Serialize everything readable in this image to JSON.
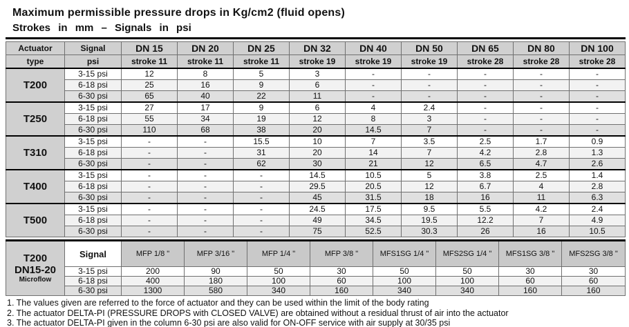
{
  "title": "Maximum permissible pressure drops in Kg/cm2 (fluid opens)",
  "subtitle": "Strokes in mm – Signals in psi",
  "colors": {
    "header_bg": "#d0d0d0",
    "row_light": "#f2f2f2",
    "row_shaded": "#e0e0e0"
  },
  "main_table": {
    "corner": {
      "actuator_line1": "Actuator",
      "actuator_line2": "type",
      "signal_line1": "Signal",
      "signal_line2": "psi"
    },
    "dn_columns": [
      {
        "dn": "DN 15",
        "stroke": "stroke 11"
      },
      {
        "dn": "DN 20",
        "stroke": "stroke 11"
      },
      {
        "dn": "DN 25",
        "stroke": "stroke 11"
      },
      {
        "dn": "DN 32",
        "stroke": "stroke 19"
      },
      {
        "dn": "DN 40",
        "stroke": "stroke 19"
      },
      {
        "dn": "DN 50",
        "stroke": "stroke 19"
      },
      {
        "dn": "DN 65",
        "stroke": "stroke 28"
      },
      {
        "dn": "DN 80",
        "stroke": "stroke 28"
      },
      {
        "dn": "DN 100",
        "stroke": "stroke 28"
      }
    ],
    "groups": [
      {
        "actuator": "T200",
        "rows": [
          {
            "signal": "3-15 psi",
            "values": [
              "12",
              "8",
              "5",
              "3",
              "-",
              "-",
              "-",
              "-",
              "-"
            ]
          },
          {
            "signal": "6-18 psi",
            "values": [
              "25",
              "16",
              "9",
              "6",
              "-",
              "-",
              "-",
              "-",
              "-"
            ]
          },
          {
            "signal": "6-30 psi",
            "values": [
              "65",
              "40",
              "22",
              "11",
              "-",
              "-",
              "-",
              "-",
              "-"
            ]
          }
        ]
      },
      {
        "actuator": "T250",
        "rows": [
          {
            "signal": "3-15 psi",
            "values": [
              "27",
              "17",
              "9",
              "6",
              "4",
              "2.4",
              "-",
              "-",
              "-"
            ]
          },
          {
            "signal": "6-18 psi",
            "values": [
              "55",
              "34",
              "19",
              "12",
              "8",
              "3",
              "-",
              "-",
              "-"
            ]
          },
          {
            "signal": "6-30 psi",
            "values": [
              "110",
              "68",
              "38",
              "20",
              "14.5",
              "7",
              "-",
              "-",
              "-"
            ]
          }
        ]
      },
      {
        "actuator": "T310",
        "rows": [
          {
            "signal": "3-15 psi",
            "values": [
              "-",
              "-",
              "15.5",
              "10",
              "7",
              "3.5",
              "2.5",
              "1.7",
              "0.9"
            ]
          },
          {
            "signal": "6-18 psi",
            "values": [
              "-",
              "-",
              "31",
              "20",
              "14",
              "7",
              "4.2",
              "2.8",
              "1.3"
            ]
          },
          {
            "signal": "6-30 psi",
            "values": [
              "-",
              "-",
              "62",
              "30",
              "21",
              "12",
              "6.5",
              "4.7",
              "2.6"
            ]
          }
        ]
      },
      {
        "actuator": "T400",
        "rows": [
          {
            "signal": "3-15 psi",
            "values": [
              "-",
              "-",
              "-",
              "14.5",
              "10.5",
              "5",
              "3.8",
              "2.5",
              "1.4"
            ]
          },
          {
            "signal": "6-18 psi",
            "values": [
              "-",
              "-",
              "-",
              "29.5",
              "20.5",
              "12",
              "6.7",
              "4",
              "2.8"
            ]
          },
          {
            "signal": "6-30 psi",
            "values": [
              "-",
              "-",
              "-",
              "45",
              "31.5",
              "18",
              "16",
              "11",
              "6.3"
            ]
          }
        ]
      },
      {
        "actuator": "T500",
        "rows": [
          {
            "signal": "3-15 psi",
            "values": [
              "-",
              "-",
              "-",
              "24.5",
              "17.5",
              "9.5",
              "5.5",
              "4.2",
              "2.4"
            ]
          },
          {
            "signal": "6-18 psi",
            "values": [
              "-",
              "-",
              "-",
              "49",
              "34.5",
              "19.5",
              "12.2",
              "7",
              "4.9"
            ]
          },
          {
            "signal": "6-30 psi",
            "values": [
              "-",
              "-",
              "-",
              "75",
              "52.5",
              "30.3",
              "26",
              "16",
              "10.5"
            ]
          }
        ]
      }
    ]
  },
  "microflow_table": {
    "label_lines": [
      "T200",
      "DN15-20",
      "Microflow"
    ],
    "signal_header": "Signal",
    "columns": [
      "MFP 1/8 \"",
      "MFP 3/16 \"",
      "MFP 1/4 \"",
      "MFP 3/8 \"",
      "MFS1SG 1/4 \"",
      "MFS2SG 1/4 \"",
      "MFS1SG 3/8 \"",
      "MFS2SG 3/8 \""
    ],
    "rows": [
      {
        "signal": "3-15 psi",
        "values": [
          "200",
          "90",
          "50",
          "30",
          "50",
          "50",
          "30",
          "30"
        ]
      },
      {
        "signal": "6-18 psi",
        "values": [
          "400",
          "180",
          "100",
          "60",
          "100",
          "100",
          "60",
          "60"
        ]
      },
      {
        "signal": "6-30 psi",
        "values": [
          "1300",
          "580",
          "340",
          "160",
          "340",
          "340",
          "160",
          "160"
        ]
      }
    ]
  },
  "notes": [
    "1. The values given are referred to the force of actuator and they can be used within the limit of the body rating",
    "2. The actuator DELTA-PI  (PRESSURE DROPS with CLOSED VALVE) are obtained without a residual thrust of air into the actuator",
    "3. The actuator DELTA-PI  given in the column 6-30 psi are also valid for ON-OFF service with air supply at 30/35 psi"
  ]
}
